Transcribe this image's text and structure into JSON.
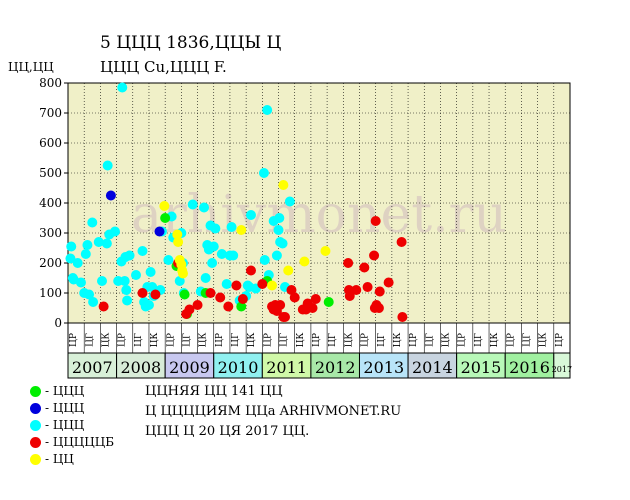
{
  "header": {
    "title_line1": "5 ЦЦЦ 1836,ЦЦЫ Ц",
    "title_line2": "ЦЦЦ Cu,ЦЦЦ F."
  },
  "colors": {
    "plot_bg": "#f0f0c8",
    "year_bg": [
      "#d8f0d8",
      "#d8ecd8",
      "#c8c8f0",
      "#90f0f0",
      "#d0f8a8",
      "#a8e8a8",
      "#b8e4f8",
      "#c8d4e0",
      "#b8f8b8",
      "#a0f0a0",
      "#d8f8d8"
    ],
    "watermark": "#d8c8c0"
  },
  "legend": [
    {
      "label": "- ЦЦЦ",
      "color": "#00ee00"
    },
    {
      "label": "- ЦЦЦ",
      "color": "#0000dd"
    },
    {
      "label": "- ЦЦЦ",
      "color": "#00ffff"
    },
    {
      "label": "- ЦЦЦЦЦБ",
      "color": "#ee0000"
    },
    {
      "label": "- ЦЦ",
      "color": "#ffff00"
    }
  ],
  "notes": {
    "line1": "ЦЦНЯЯ ЦЦ 141 ЦЦ",
    "line2": "Ц ЦЦЦЦИЯМ ЦЦа ARHIVMONET.RU",
    "line3": "ЦЦЦ Ц 20 ЦЯ 2017 ЦЦ."
  },
  "watermark_text": "arhivmonet.ru",
  "chart_data": {
    "type": "scatter",
    "ylabel": "ЦЦ,ЦЦ",
    "ylim": [
      0,
      800
    ],
    "yticks": [
      0,
      100,
      200,
      300,
      400,
      500,
      600,
      700,
      800
    ],
    "grid": true,
    "years": [
      "2007",
      "2008",
      "2009",
      "2010",
      "2011",
      "2012",
      "2013",
      "2014",
      "2015",
      "2016",
      "2017"
    ],
    "quarter_labels": [
      "ЦР",
      "ЦГ",
      "ЦК"
    ],
    "x_note": "x = position in quarters from start of 2007 (3 periods per year)",
    "series": [
      {
        "color": "#00ffff",
        "points": [
          [
            0.15,
            215
          ],
          [
            0.2,
            255
          ],
          [
            0.3,
            150
          ],
          [
            0.35,
            145
          ],
          [
            0.6,
            200
          ],
          [
            0.8,
            135
          ],
          [
            1.0,
            100
          ],
          [
            1.1,
            230
          ],
          [
            1.2,
            260
          ],
          [
            1.3,
            95
          ],
          [
            1.5,
            335
          ],
          [
            1.55,
            70
          ],
          [
            1.9,
            270
          ],
          [
            2.1,
            140
          ],
          [
            2.4,
            265
          ],
          [
            2.45,
            525
          ],
          [
            2.55,
            295
          ],
          [
            2.9,
            305
          ],
          [
            3.1,
            140
          ],
          [
            3.3,
            205
          ],
          [
            3.35,
            785
          ],
          [
            3.5,
            140
          ],
          [
            3.55,
            220
          ],
          [
            3.6,
            110
          ],
          [
            3.65,
            75
          ],
          [
            3.8,
            225
          ],
          [
            4.2,
            160
          ],
          [
            4.6,
            240
          ],
          [
            4.7,
            70
          ],
          [
            4.8,
            55
          ],
          [
            4.9,
            120
          ],
          [
            5.0,
            60
          ],
          [
            5.1,
            170
          ],
          [
            5.2,
            120
          ],
          [
            5.3,
            90
          ],
          [
            5.7,
            110
          ],
          [
            5.8,
            305
          ],
          [
            6.2,
            210
          ],
          [
            6.4,
            355
          ],
          [
            6.5,
            285
          ],
          [
            6.9,
            140
          ],
          [
            7.0,
            300
          ],
          [
            7.1,
            200
          ],
          [
            7.15,
            100
          ],
          [
            7.7,
            395
          ],
          [
            8.2,
            105
          ],
          [
            8.4,
            385
          ],
          [
            8.5,
            150
          ],
          [
            8.6,
            260
          ],
          [
            8.7,
            245
          ],
          [
            8.8,
            325
          ],
          [
            8.9,
            200
          ],
          [
            9.0,
            255
          ],
          [
            9.1,
            315
          ],
          [
            9.5,
            230
          ],
          [
            9.8,
            130
          ],
          [
            10.0,
            225
          ],
          [
            10.1,
            320
          ],
          [
            10.2,
            225
          ],
          [
            10.6,
            75
          ],
          [
            11.0,
            90
          ],
          [
            11.1,
            125
          ],
          [
            11.2,
            120
          ],
          [
            11.3,
            360
          ],
          [
            11.6,
            115
          ],
          [
            12.1,
            500
          ],
          [
            12.3,
            710
          ],
          [
            12.15,
            210
          ],
          [
            12.4,
            160
          ],
          [
            12.7,
            340
          ],
          [
            12.9,
            225
          ],
          [
            13.0,
            310
          ],
          [
            13.05,
            350
          ],
          [
            13.1,
            270
          ],
          [
            13.25,
            265
          ],
          [
            13.4,
            120
          ],
          [
            13.7,
            405
          ]
        ]
      },
      {
        "color": "#00ee00",
        "points": [
          [
            6.0,
            350
          ],
          [
            6.7,
            190
          ],
          [
            7.2,
            95
          ],
          [
            7.35,
            30
          ],
          [
            8.5,
            100
          ],
          [
            10.7,
            55
          ],
          [
            12.3,
            140
          ],
          [
            16.1,
            70
          ]
        ]
      },
      {
        "color": "#0000dd",
        "points": [
          [
            2.65,
            425
          ],
          [
            5.65,
            305
          ]
        ]
      },
      {
        "color": "#ee0000",
        "points": [
          [
            2.2,
            55
          ],
          [
            4.6,
            100
          ],
          [
            5.4,
            95
          ],
          [
            6.8,
            200
          ],
          [
            7.3,
            30
          ],
          [
            7.5,
            45
          ],
          [
            8.0,
            60
          ],
          [
            8.8,
            100
          ],
          [
            9.4,
            85
          ],
          [
            9.9,
            55
          ],
          [
            10.4,
            125
          ],
          [
            10.8,
            80
          ],
          [
            11.3,
            175
          ],
          [
            12.0,
            130
          ],
          [
            12.6,
            55
          ],
          [
            12.7,
            45
          ],
          [
            12.8,
            60
          ],
          [
            12.9,
            40
          ],
          [
            13.1,
            60
          ],
          [
            13.3,
            20
          ],
          [
            13.4,
            20
          ],
          [
            13.8,
            110
          ],
          [
            14.0,
            85
          ],
          [
            14.5,
            45
          ],
          [
            14.7,
            45
          ],
          [
            14.8,
            65
          ],
          [
            15.1,
            50
          ],
          [
            15.3,
            80
          ],
          [
            17.3,
            200
          ],
          [
            17.35,
            110
          ],
          [
            17.4,
            90
          ],
          [
            17.8,
            110
          ],
          [
            18.3,
            185
          ],
          [
            18.5,
            120
          ],
          [
            18.9,
            225
          ],
          [
            19.0,
            340
          ],
          [
            18.95,
            50
          ],
          [
            19.05,
            60
          ],
          [
            19.2,
            50
          ],
          [
            19.25,
            105
          ],
          [
            19.8,
            135
          ],
          [
            20.6,
            270
          ],
          [
            20.65,
            20
          ]
        ]
      },
      {
        "color": "#ffff00",
        "points": [
          [
            5.95,
            390
          ],
          [
            6.75,
            295
          ],
          [
            6.8,
            270
          ],
          [
            6.9,
            210
          ],
          [
            7.0,
            195
          ],
          [
            7.05,
            175
          ],
          [
            7.1,
            165
          ],
          [
            10.7,
            310
          ],
          [
            12.6,
            125
          ],
          [
            13.3,
            460
          ],
          [
            13.6,
            175
          ],
          [
            14.6,
            205
          ],
          [
            15.9,
            240
          ]
        ]
      }
    ]
  }
}
